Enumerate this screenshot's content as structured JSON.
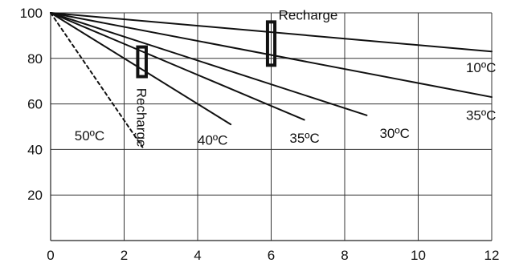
{
  "chart_data": {
    "type": "line",
    "xlim": [
      0,
      12
    ],
    "ylim": [
      0,
      100
    ],
    "x_ticks": [
      "0",
      "2",
      "4",
      "6",
      "8",
      "10",
      "12"
    ],
    "y_ticks": [
      "20",
      "40",
      "60",
      "80",
      "100"
    ],
    "grid": true,
    "series": [
      {
        "name": "10ºC",
        "style": "solid",
        "points": [
          [
            0,
            100
          ],
          [
            12,
            83
          ]
        ]
      },
      {
        "name": "35ºC",
        "style": "solid",
        "points": [
          [
            0,
            100
          ],
          [
            12,
            63
          ]
        ]
      },
      {
        "name": "30ºC",
        "style": "solid",
        "points": [
          [
            0,
            100
          ],
          [
            8.6,
            55
          ]
        ]
      },
      {
        "name": "35ºC",
        "style": "solid",
        "points": [
          [
            0,
            100
          ],
          [
            6.9,
            53
          ]
        ]
      },
      {
        "name": "40ºC",
        "style": "solid",
        "points": [
          [
            0,
            100
          ],
          [
            4.9,
            51
          ]
        ]
      },
      {
        "name": "50ºC",
        "style": "dashed",
        "points": [
          [
            0,
            100
          ],
          [
            2.5,
            41
          ]
        ]
      }
    ],
    "series_labels": [
      {
        "text": "10ºC",
        "x": 11.3,
        "y": 74
      },
      {
        "text": "35ºC",
        "x": 11.3,
        "y": 53
      },
      {
        "text": "30ºC",
        "x": 8.95,
        "y": 45
      },
      {
        "text": "35ºC",
        "x": 6.5,
        "y": 43
      },
      {
        "text": "40ºC",
        "x": 4.0,
        "y": 42
      },
      {
        "text": "50ºC",
        "x": 0.65,
        "y": 44
      }
    ],
    "annotations": [
      {
        "text": "Recharge",
        "orientation": "horizontal",
        "x": 6.2,
        "y": 97,
        "rect": {
          "x0": 5.9,
          "x1": 6.1,
          "y0": 77,
          "y1": 96
        }
      },
      {
        "text": "Recharge",
        "orientation": "vertical",
        "x": 2.35,
        "y": 67,
        "rect": {
          "x0": 2.37,
          "x1": 2.6,
          "y0": 72,
          "y1": 85
        }
      }
    ]
  }
}
